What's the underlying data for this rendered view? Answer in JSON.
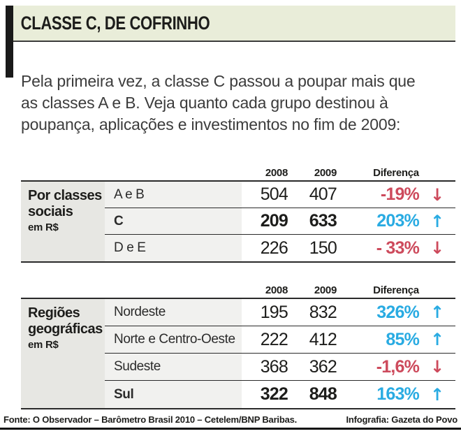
{
  "header": {
    "title": "CLASSE C, DE COFRINHO"
  },
  "intro": "Pela primeira vez, a classe C passou a poupar mais que as classes A e B. Veja quanto cada grupo destinou à poupança, aplicações e investimentos no fim de 2009:",
  "columns": {
    "y2008": "2008",
    "y2009": "2009",
    "diff": "Diferença"
  },
  "tables": [
    {
      "label_title": "Por classes sociais",
      "label_unit": "em R$",
      "rows": [
        {
          "name": "A e B",
          "v2008": "504",
          "v2009": "407",
          "diff": "-19%",
          "arrow": "↓"
        },
        {
          "name": "C",
          "v2008": "209",
          "v2009": "633",
          "diff": "203%",
          "arrow": "↑"
        },
        {
          "name": "D e E",
          "v2008": "226",
          "v2009": "150",
          "diff": "- 33%",
          "arrow": "↓"
        }
      ]
    },
    {
      "label_title": "Regiões geográficas",
      "label_unit": "em R$",
      "rows": [
        {
          "name": "Nordeste",
          "v2008": "195",
          "v2009": "832",
          "diff": "326%",
          "arrow": "↑"
        },
        {
          "name": "Norte e Centro-Oeste",
          "v2008": "222",
          "v2009": "412",
          "diff": "85%",
          "arrow": "↑"
        },
        {
          "name": "Sudeste",
          "v2008": "368",
          "v2009": "362",
          "diff": "-1,6%",
          "arrow": "↓"
        },
        {
          "name": "Sul",
          "v2008": "322",
          "v2009": "848",
          "diff": "163%",
          "arrow": "↑"
        }
      ]
    }
  ],
  "footer": {
    "source": "Fonte: O Observador – Barômetro Brasil 2010 – Cetelem/BNP Baribas.",
    "credit": "Infografia: Gazeta do Povo"
  },
  "colors": {
    "up": "#29abe2",
    "down": "#cd4a5c",
    "header_bg": "#e9edd9"
  },
  "chart_data": {
    "type": "table",
    "title": "CLASSE C, DE COFRINHO",
    "subtitle": "Poupança, aplicações e investimentos no fim de 2009 (em R$)",
    "groups": [
      {
        "group": "Por classes sociais (em R$)",
        "columns": [
          "2008",
          "2009",
          "Diferença"
        ],
        "rows": [
          [
            "A e B",
            504,
            407,
            "-19%"
          ],
          [
            "C",
            209,
            633,
            "203%"
          ],
          [
            "D e E",
            226,
            150,
            "-33%"
          ]
        ]
      },
      {
        "group": "Regiões geográficas (em R$)",
        "columns": [
          "2008",
          "2009",
          "Diferença"
        ],
        "rows": [
          [
            "Nordeste",
            195,
            832,
            "326%"
          ],
          [
            "Norte e Centro-Oeste",
            222,
            412,
            "85%"
          ],
          [
            "Sudeste",
            368,
            362,
            "-1,6%"
          ],
          [
            "Sul",
            322,
            848,
            "163%"
          ]
        ]
      }
    ]
  }
}
